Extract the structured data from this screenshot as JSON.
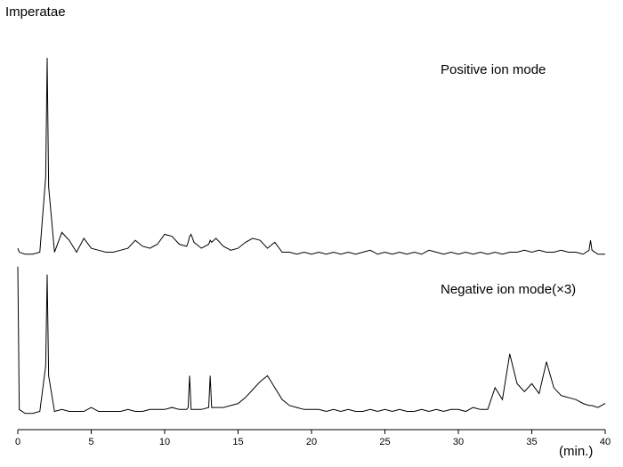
{
  "chart_data": {
    "type": "line",
    "title": "Imperatae",
    "xlabel": "(min.)",
    "x": [
      0,
      0.1,
      0.5,
      1,
      1.5,
      1.9,
      2,
      2.1,
      2.5,
      3,
      3.5,
      4,
      4.5,
      5,
      5.5,
      6,
      6.5,
      7,
      7.5,
      8,
      8.5,
      9,
      9.5,
      10,
      10.5,
      11,
      11.5,
      11.6,
      11.7,
      11.8,
      12,
      12.5,
      13,
      13.1,
      13.2,
      13.5,
      14,
      14.5,
      15,
      15.5,
      16,
      16.5,
      17,
      17.5,
      18,
      18.5,
      19,
      19.5,
      20,
      20.5,
      21,
      21.5,
      22,
      22.5,
      23,
      23.5,
      24,
      24.5,
      25,
      25.5,
      26,
      26.5,
      27,
      27.5,
      28,
      28.5,
      29,
      29.5,
      30,
      30.5,
      31,
      31.5,
      32,
      32.5,
      33,
      33.5,
      34,
      34.5,
      35,
      35.5,
      36,
      36.5,
      37,
      37.5,
      38,
      38.5,
      38.9,
      39,
      39.1,
      39.5,
      40
    ],
    "series": [
      {
        "name": "Positive ion mode",
        "color": "#000000",
        "values": [
          4,
          2,
          1,
          1,
          2,
          40,
          100,
          35,
          2,
          12,
          8,
          2,
          9,
          4,
          3,
          2,
          2,
          3,
          4,
          8,
          5,
          4,
          6,
          11,
          10,
          6,
          5,
          7,
          10,
          11,
          7,
          4,
          6,
          8,
          7,
          9,
          5,
          3,
          4,
          7,
          9,
          8,
          4,
          7,
          2,
          2,
          1,
          2,
          1,
          2,
          1,
          2,
          1,
          2,
          1,
          2,
          3,
          1,
          2,
          1,
          2,
          1,
          2,
          1,
          3,
          2,
          1,
          2,
          1,
          2,
          1,
          2,
          1,
          2,
          1,
          2,
          2,
          3,
          2,
          3,
          2,
          2,
          3,
          2,
          2,
          1,
          3,
          8,
          3,
          1,
          1
        ]
      },
      {
        "name": "Negative ion mode(×3)",
        "color": "#000000",
        "values": [
          75,
          3,
          1,
          1,
          2,
          25,
          71,
          20,
          2,
          3,
          2,
          2,
          2,
          4,
          2,
          2,
          2,
          2,
          3,
          2,
          2,
          3,
          3,
          3,
          4,
          3,
          3,
          4,
          20,
          3,
          3,
          3,
          4,
          20,
          4,
          4,
          4,
          5,
          6,
          9,
          13,
          17,
          20,
          14,
          8,
          5,
          4,
          3,
          3,
          3,
          2,
          3,
          2,
          3,
          2,
          2,
          3,
          2,
          3,
          2,
          3,
          2,
          2,
          3,
          2,
          3,
          2,
          3,
          3,
          2,
          4,
          3,
          3,
          14,
          8,
          31,
          16,
          12,
          16,
          11,
          27,
          14,
          10,
          9,
          8,
          6,
          5,
          5,
          5,
          4,
          6
        ]
      }
    ],
    "xlim": [
      0,
      40
    ],
    "xticks": [
      0,
      5,
      10,
      15,
      20,
      25,
      30,
      35,
      40
    ],
    "ylim": [
      0,
      100
    ]
  }
}
